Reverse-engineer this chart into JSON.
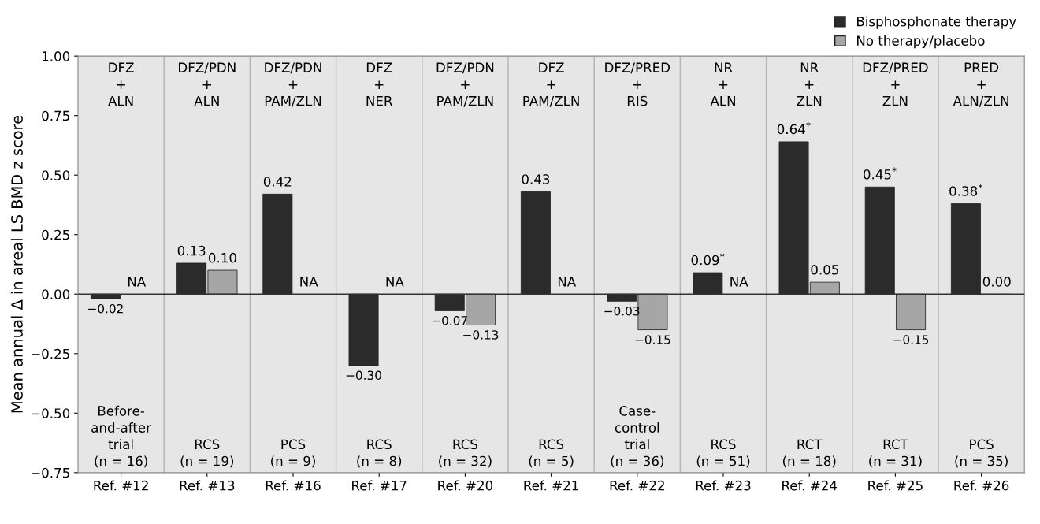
{
  "chart_data": {
    "type": "bar",
    "ylabel": "Mean annual Δ in areal LS BMD z score",
    "categories": [
      "Ref. #12",
      "Ref. #13",
      "Ref. #16",
      "Ref. #17",
      "Ref. #20",
      "Ref. #21",
      "Ref. #22",
      "Ref. #23",
      "Ref. #24",
      "Ref. #25",
      "Ref. #26"
    ],
    "series": [
      {
        "name": "Bisphosphonate therapy",
        "color": "#2b2b2b",
        "values": [
          -0.02,
          0.13,
          0.42,
          -0.3,
          -0.07,
          0.43,
          -0.03,
          0.09,
          0.64,
          0.45,
          0.38
        ],
        "value_labels": [
          "−0.02",
          "0.13",
          "0.42",
          "−0.30",
          "−0.07",
          "0.43",
          "−0.03",
          "0.09$^{*}$",
          "0.64$^{*}$",
          "0.45$^{*}$",
          "0.38$^{*}$"
        ]
      },
      {
        "name": "No therapy/placebo",
        "color": "#a6a6a6",
        "values": [
          null,
          0.1,
          null,
          null,
          -0.13,
          null,
          -0.15,
          null,
          0.05,
          -0.15,
          0.0
        ],
        "value_labels": [
          "NA",
          "0.10",
          "NA",
          "NA",
          "−0.13",
          "NA",
          "−0.15",
          "NA",
          "0.05",
          "−0.15",
          "0.00"
        ]
      }
    ],
    "ylim": [
      -0.75,
      1.0
    ],
    "yticks": [
      {
        "value": -0.75,
        "label": "−0.75"
      },
      {
        "value": -0.5,
        "label": "−0.50"
      },
      {
        "value": -0.25,
        "label": "−0.25"
      },
      {
        "value": 0,
        "label": "0.00"
      },
      {
        "value": 0.25,
        "label": "0.25"
      },
      {
        "value": 0.5,
        "label": "0.50"
      },
      {
        "value": 0.75,
        "label": "0.75"
      },
      {
        "value": 1.0,
        "label": "1.00"
      }
    ],
    "ref_lines": [
      {
        "axis": "y",
        "value": 0,
        "color": "#333333"
      }
    ],
    "grid": "x",
    "legend": "top right",
    "annotations": [
      "DFZ\n+\nALN",
      "DFZ/PDN\n+\nALN",
      "DFZ/PDN\n+\nPAM/ZLN",
      "DFZ\n+\nNER",
      "DFZ/PDN\n+\nPAM/ZLN",
      "DFZ\n+\nPAM/ZLN",
      "DFZ/PRED\n+\nRIS",
      "NR\n+\nALN",
      "NR\n+\nZLN",
      "DFZ/PRED\n+\nZLN",
      "PRED\n+\nALN/ZLN",
      "Before-\nand-after\ntrial\n(n = 16)",
      "RCS\n(n = 19)",
      "PCS\n(n = 9)",
      "RCS\n(n = 8)",
      "RCS\n(n = 32)",
      "RCS\n(n = 5)",
      "Case-\ncontrol\ntrial\n(n = 36)",
      "RCS\n(n = 51)",
      "RCT\n(n = 18)",
      "RCT\n(n = 31)",
      "PCS\n(n = 35)"
    ]
  }
}
